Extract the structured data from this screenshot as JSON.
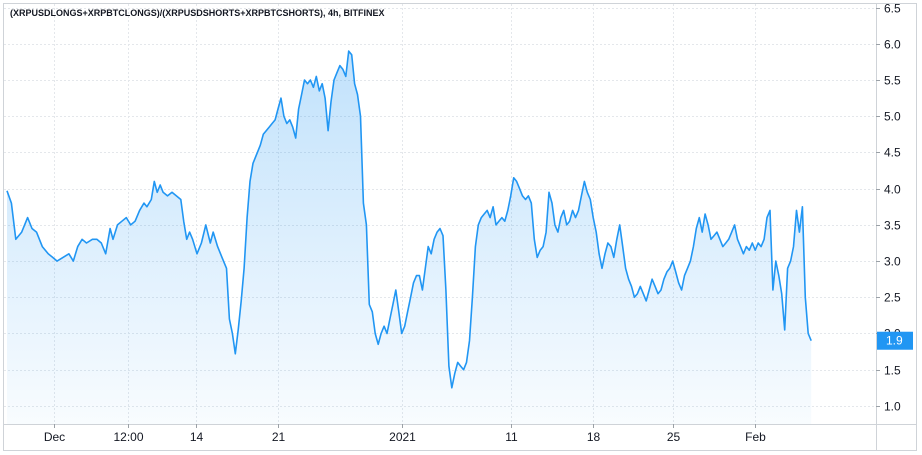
{
  "chart_data": {
    "type": "area",
    "title": "(XRPUSDLONGS+XRPBTCLONGS)/(XRPUSDSHORTS+XRPBTCSHORTS), 4h, BITFINEX",
    "xlabel": "",
    "ylabel": "",
    "ylim": [
      0.75,
      6.55
    ],
    "grid": true,
    "legend": "none",
    "line_color": "#2196f3",
    "fill_color": "#2196f3",
    "last_value_label": "1.9",
    "x_ticks": [
      {
        "label": "Dec",
        "x": 1.6
      },
      {
        "label": "12:00",
        "x": 4.1
      },
      {
        "label": "14",
        "x": 6.4
      },
      {
        "label": "21",
        "x": 9.2
      },
      {
        "label": "2021",
        "x": 13.4
      },
      {
        "label": "11",
        "x": 17.1
      },
      {
        "label": "18",
        "x": 19.9
      },
      {
        "label": "25",
        "x": 22.6
      },
      {
        "label": "Feb",
        "x": 25.4
      }
    ],
    "y_ticks": [
      "1.0",
      "1.5",
      "2.0",
      "2.5",
      "3.0",
      "3.5",
      "4.0",
      "4.5",
      "5.0",
      "5.5",
      "6.0",
      "6.5"
    ],
    "series": [
      {
        "points": [
          [
            0.0,
            3.97
          ],
          [
            0.15,
            3.8
          ],
          [
            0.3,
            3.3
          ],
          [
            0.5,
            3.4
          ],
          [
            0.7,
            3.6
          ],
          [
            0.85,
            3.45
          ],
          [
            1.0,
            3.4
          ],
          [
            1.2,
            3.2
          ],
          [
            1.4,
            3.1
          ],
          [
            1.55,
            3.05
          ],
          [
            1.7,
            3.0
          ],
          [
            1.9,
            3.05
          ],
          [
            2.1,
            3.1
          ],
          [
            2.25,
            3.0
          ],
          [
            2.4,
            3.2
          ],
          [
            2.55,
            3.3
          ],
          [
            2.7,
            3.25
          ],
          [
            2.9,
            3.3
          ],
          [
            3.05,
            3.3
          ],
          [
            3.2,
            3.25
          ],
          [
            3.35,
            3.1
          ],
          [
            3.5,
            3.45
          ],
          [
            3.6,
            3.3
          ],
          [
            3.75,
            3.5
          ],
          [
            3.9,
            3.55
          ],
          [
            4.05,
            3.6
          ],
          [
            4.2,
            3.5
          ],
          [
            4.35,
            3.55
          ],
          [
            4.5,
            3.7
          ],
          [
            4.65,
            3.8
          ],
          [
            4.75,
            3.75
          ],
          [
            4.9,
            3.85
          ],
          [
            5.0,
            4.1
          ],
          [
            5.1,
            3.95
          ],
          [
            5.2,
            4.05
          ],
          [
            5.3,
            3.95
          ],
          [
            5.45,
            3.9
          ],
          [
            5.6,
            3.95
          ],
          [
            5.75,
            3.9
          ],
          [
            5.9,
            3.85
          ],
          [
            6.0,
            3.55
          ],
          [
            6.1,
            3.3
          ],
          [
            6.2,
            3.4
          ],
          [
            6.3,
            3.3
          ],
          [
            6.45,
            3.1
          ],
          [
            6.6,
            3.25
          ],
          [
            6.75,
            3.5
          ],
          [
            6.9,
            3.25
          ],
          [
            7.0,
            3.4
          ],
          [
            7.15,
            3.2
          ],
          [
            7.3,
            3.05
          ],
          [
            7.45,
            2.9
          ],
          [
            7.55,
            2.2
          ],
          [
            7.65,
            2.0
          ],
          [
            7.75,
            1.72
          ],
          [
            7.85,
            2.05
          ],
          [
            7.95,
            2.45
          ],
          [
            8.05,
            2.9
          ],
          [
            8.15,
            3.6
          ],
          [
            8.25,
            4.1
          ],
          [
            8.35,
            4.35
          ],
          [
            8.5,
            4.5
          ],
          [
            8.6,
            4.6
          ],
          [
            8.7,
            4.75
          ],
          [
            8.8,
            4.8
          ],
          [
            8.9,
            4.85
          ],
          [
            9.0,
            4.9
          ],
          [
            9.1,
            4.95
          ],
          [
            9.2,
            5.1
          ],
          [
            9.3,
            5.25
          ],
          [
            9.4,
            5.0
          ],
          [
            9.5,
            4.9
          ],
          [
            9.6,
            4.95
          ],
          [
            9.7,
            4.85
          ],
          [
            9.8,
            4.7
          ],
          [
            9.9,
            5.1
          ],
          [
            10.0,
            5.3
          ],
          [
            10.1,
            5.5
          ],
          [
            10.2,
            5.45
          ],
          [
            10.3,
            5.5
          ],
          [
            10.4,
            5.4
          ],
          [
            10.5,
            5.55
          ],
          [
            10.6,
            5.35
          ],
          [
            10.7,
            5.45
          ],
          [
            10.8,
            5.25
          ],
          [
            10.9,
            4.8
          ],
          [
            11.0,
            5.2
          ],
          [
            11.1,
            5.5
          ],
          [
            11.2,
            5.6
          ],
          [
            11.3,
            5.7
          ],
          [
            11.4,
            5.65
          ],
          [
            11.5,
            5.55
          ],
          [
            11.6,
            5.9
          ],
          [
            11.7,
            5.85
          ],
          [
            11.8,
            5.45
          ],
          [
            11.9,
            5.3
          ],
          [
            12.0,
            5.0
          ],
          [
            12.1,
            3.8
          ],
          [
            12.2,
            3.5
          ],
          [
            12.3,
            2.4
          ],
          [
            12.4,
            2.3
          ],
          [
            12.5,
            2.0
          ],
          [
            12.6,
            1.85
          ],
          [
            12.7,
            2.0
          ],
          [
            12.8,
            2.1
          ],
          [
            12.9,
            2.0
          ],
          [
            13.0,
            2.2
          ],
          [
            13.1,
            2.4
          ],
          [
            13.2,
            2.6
          ],
          [
            13.3,
            2.3
          ],
          [
            13.4,
            2.0
          ],
          [
            13.5,
            2.1
          ],
          [
            13.6,
            2.3
          ],
          [
            13.7,
            2.5
          ],
          [
            13.8,
            2.7
          ],
          [
            13.9,
            2.8
          ],
          [
            14.0,
            2.8
          ],
          [
            14.1,
            2.6
          ],
          [
            14.2,
            2.9
          ],
          [
            14.3,
            3.2
          ],
          [
            14.4,
            3.1
          ],
          [
            14.5,
            3.3
          ],
          [
            14.6,
            3.4
          ],
          [
            14.7,
            3.45
          ],
          [
            14.8,
            3.35
          ],
          [
            14.9,
            2.6
          ],
          [
            15.0,
            1.55
          ],
          [
            15.1,
            1.25
          ],
          [
            15.2,
            1.45
          ],
          [
            15.3,
            1.6
          ],
          [
            15.4,
            1.55
          ],
          [
            15.5,
            1.5
          ],
          [
            15.6,
            1.6
          ],
          [
            15.7,
            1.9
          ],
          [
            15.8,
            2.5
          ],
          [
            15.9,
            3.2
          ],
          [
            16.0,
            3.5
          ],
          [
            16.1,
            3.6
          ],
          [
            16.2,
            3.65
          ],
          [
            16.3,
            3.7
          ],
          [
            16.4,
            3.6
          ],
          [
            16.5,
            3.75
          ],
          [
            16.6,
            3.5
          ],
          [
            16.7,
            3.55
          ],
          [
            16.8,
            3.6
          ],
          [
            16.9,
            3.55
          ],
          [
            17.0,
            3.7
          ],
          [
            17.1,
            3.9
          ],
          [
            17.2,
            4.15
          ],
          [
            17.3,
            4.1
          ],
          [
            17.4,
            4.0
          ],
          [
            17.5,
            3.9
          ],
          [
            17.6,
            3.85
          ],
          [
            17.7,
            3.9
          ],
          [
            17.8,
            3.8
          ],
          [
            17.9,
            3.3
          ],
          [
            18.0,
            3.05
          ],
          [
            18.1,
            3.15
          ],
          [
            18.2,
            3.2
          ],
          [
            18.3,
            3.4
          ],
          [
            18.4,
            3.95
          ],
          [
            18.5,
            3.8
          ],
          [
            18.6,
            3.5
          ],
          [
            18.7,
            3.4
          ],
          [
            18.8,
            3.6
          ],
          [
            18.9,
            3.7
          ],
          [
            19.0,
            3.5
          ],
          [
            19.1,
            3.55
          ],
          [
            19.2,
            3.7
          ],
          [
            19.3,
            3.6
          ],
          [
            19.4,
            3.7
          ],
          [
            19.5,
            3.9
          ],
          [
            19.6,
            4.1
          ],
          [
            19.7,
            3.95
          ],
          [
            19.8,
            3.85
          ],
          [
            19.9,
            3.6
          ],
          [
            20.0,
            3.4
          ],
          [
            20.1,
            3.1
          ],
          [
            20.2,
            2.9
          ],
          [
            20.3,
            3.1
          ],
          [
            20.4,
            3.25
          ],
          [
            20.5,
            3.2
          ],
          [
            20.6,
            3.05
          ],
          [
            20.7,
            3.3
          ],
          [
            20.8,
            3.5
          ],
          [
            20.9,
            3.2
          ],
          [
            21.0,
            2.9
          ],
          [
            21.1,
            2.75
          ],
          [
            21.2,
            2.65
          ],
          [
            21.3,
            2.5
          ],
          [
            21.4,
            2.55
          ],
          [
            21.5,
            2.65
          ],
          [
            21.6,
            2.55
          ],
          [
            21.7,
            2.45
          ],
          [
            21.8,
            2.6
          ],
          [
            21.9,
            2.75
          ],
          [
            22.0,
            2.65
          ],
          [
            22.1,
            2.55
          ],
          [
            22.2,
            2.6
          ],
          [
            22.3,
            2.75
          ],
          [
            22.4,
            2.85
          ],
          [
            22.5,
            2.9
          ],
          [
            22.6,
            3.0
          ],
          [
            22.7,
            2.85
          ],
          [
            22.8,
            2.7
          ],
          [
            22.9,
            2.6
          ],
          [
            23.0,
            2.8
          ],
          [
            23.1,
            2.9
          ],
          [
            23.2,
            3.0
          ],
          [
            23.3,
            3.2
          ],
          [
            23.4,
            3.45
          ],
          [
            23.5,
            3.6
          ],
          [
            23.6,
            3.4
          ],
          [
            23.7,
            3.65
          ],
          [
            23.8,
            3.5
          ],
          [
            23.9,
            3.3
          ],
          [
            24.0,
            3.35
          ],
          [
            24.1,
            3.4
          ],
          [
            24.2,
            3.3
          ],
          [
            24.3,
            3.2
          ],
          [
            24.4,
            3.25
          ],
          [
            24.5,
            3.3
          ],
          [
            24.6,
            3.4
          ],
          [
            24.7,
            3.5
          ],
          [
            24.8,
            3.3
          ],
          [
            24.9,
            3.2
          ],
          [
            25.0,
            3.1
          ],
          [
            25.1,
            3.2
          ],
          [
            25.2,
            3.15
          ],
          [
            25.3,
            3.25
          ],
          [
            25.4,
            3.15
          ],
          [
            25.5,
            3.25
          ],
          [
            25.6,
            3.2
          ],
          [
            25.7,
            3.3
          ],
          [
            25.8,
            3.6
          ],
          [
            25.9,
            3.7
          ],
          [
            26.0,
            2.6
          ],
          [
            26.1,
            3.0
          ],
          [
            26.2,
            2.8
          ],
          [
            26.3,
            2.55
          ],
          [
            26.4,
            2.05
          ],
          [
            26.5,
            2.9
          ],
          [
            26.6,
            3.0
          ],
          [
            26.7,
            3.2
          ],
          [
            26.8,
            3.7
          ],
          [
            26.9,
            3.4
          ],
          [
            27.0,
            3.75
          ],
          [
            27.1,
            2.5
          ],
          [
            27.2,
            2.0
          ],
          [
            27.3,
            1.9
          ]
        ]
      }
    ]
  }
}
